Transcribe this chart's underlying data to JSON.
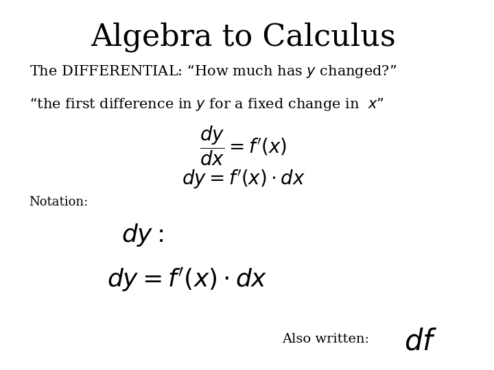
{
  "title": "Algebra to Calculus",
  "title_fontsize": 32,
  "title_font": "serif",
  "background_color": "#ffffff",
  "text_color": "#000000",
  "line1": "The DIFFERENTIAL: “How much has $y$ changed?”",
  "line1_fontsize": 15,
  "line2_prefix": "“the first difference in $y$ for a fixed change in  $x$”",
  "line2_fontsize": 15,
  "eq1": "$\\dfrac{dy}{dx} = f'(x)$",
  "eq2": "$dy = f'(x) \\cdot dx$",
  "eq_fontsize": 20,
  "notation_label": "Notation:",
  "notation_fontsize": 13,
  "eq3": "$dy:$",
  "eq3_fontsize": 26,
  "eq4": "$dy = f'(x) \\cdot dx$",
  "eq4_fontsize": 26,
  "also_written_label": "Also written:",
  "also_written_fontsize": 14,
  "eq5": "$df$",
  "eq5_fontsize": 30
}
